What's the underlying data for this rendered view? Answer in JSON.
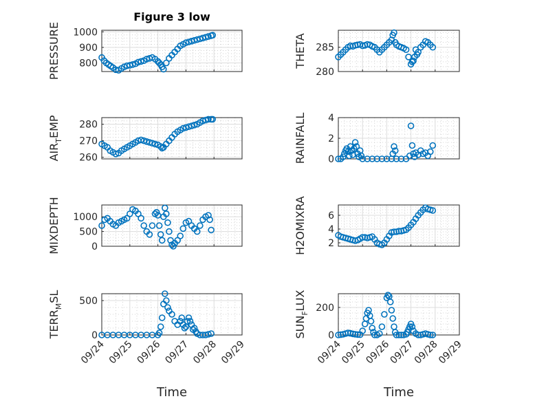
{
  "figure": {
    "title": "Figure 3 low",
    "xlabel": "Time",
    "marker_color": "#0072BD",
    "grid": "on, major and minor"
  },
  "chart_data": [
    {
      "type": "scatter",
      "title": "Figure 3 low",
      "ylabel_parts": [
        "PRESSURE"
      ],
      "xlabel": "",
      "xlim": [
        "09/24",
        "09/29"
      ],
      "xticks": [
        "09/24",
        "09/25",
        "09/26",
        "09/27",
        "09/28",
        "09/29"
      ],
      "x_tick_labels_shown": false,
      "ylim": [
        745,
        1010
      ],
      "yticks": [
        800,
        900,
        1000
      ],
      "ytick_labels": [
        "800",
        "900",
        "1000"
      ],
      "series": [
        {
          "x_days": [
            0,
            0.08,
            0.16,
            0.24,
            0.32,
            0.4,
            0.5,
            0.6,
            0.7,
            0.8,
            0.9,
            1.0,
            1.1,
            1.2,
            1.3,
            1.4,
            1.5,
            1.6,
            1.7,
            1.8,
            1.9,
            2.0,
            2.05,
            2.1,
            2.15,
            2.2,
            2.3,
            2.4,
            2.5,
            2.6,
            2.7,
            2.8,
            2.9,
            3.0,
            3.1,
            3.2,
            3.3,
            3.4,
            3.5,
            3.6,
            3.7,
            3.8,
            3.9,
            3.95
          ],
          "y": [
            835,
            815,
            800,
            790,
            780,
            770,
            757,
            753,
            765,
            775,
            782,
            785,
            790,
            795,
            805,
            810,
            815,
            825,
            830,
            835,
            825,
            810,
            800,
            790,
            775,
            760,
            800,
            830,
            850,
            870,
            890,
            910,
            920,
            930,
            935,
            940,
            945,
            950,
            955,
            960,
            965,
            970,
            975,
            978
          ]
        }
      ]
    },
    {
      "type": "scatter",
      "ylabel_parts": [
        "THETA"
      ],
      "xlabel": "",
      "xlim": [
        "09/24",
        "09/29"
      ],
      "x_tick_labels_shown": false,
      "ylim": [
        280,
        288.5
      ],
      "yticks": [
        280,
        285
      ],
      "ytick_labels": [
        "280",
        "285"
      ],
      "series": [
        {
          "x_days": [
            0,
            0.1,
            0.2,
            0.3,
            0.4,
            0.5,
            0.6,
            0.7,
            0.8,
            0.9,
            1.0,
            1.1,
            1.2,
            1.3,
            1.4,
            1.5,
            1.6,
            1.7,
            1.8,
            1.9,
            2.0,
            2.1,
            2.2,
            2.25,
            2.3,
            2.35,
            2.4,
            2.5,
            2.6,
            2.7,
            2.8,
            2.9,
            3.0,
            3.05,
            3.1,
            3.15,
            3.2,
            3.25,
            3.3,
            3.4,
            3.5,
            3.6,
            3.7,
            3.8,
            3.9
          ],
          "y": [
            283,
            283.5,
            284,
            284.5,
            285,
            285.3,
            285.2,
            285.4,
            285.5,
            285.6,
            285.3,
            285.4,
            285.6,
            285.5,
            285.2,
            285.0,
            284.5,
            284.0,
            284.5,
            285.0,
            285.5,
            286,
            286.5,
            287.5,
            288,
            286,
            285.5,
            285.2,
            285.0,
            284.8,
            284.5,
            283.0,
            281.5,
            282,
            282.2,
            283,
            284.5,
            283.5,
            284,
            285,
            285.5,
            286.2,
            286.0,
            285.5,
            285
          ]
        }
      ]
    },
    {
      "type": "scatter",
      "ylabel_parts": [
        "AIR",
        "T",
        "EMP"
      ],
      "xlabel": "",
      "xlim": [
        "09/24",
        "09/29"
      ],
      "x_tick_labels_shown": false,
      "ylim": [
        259,
        284
      ],
      "yticks": [
        260,
        270,
        280
      ],
      "ytick_labels": [
        "260",
        "270",
        "280"
      ],
      "series": [
        {
          "x_days": [
            0,
            0.1,
            0.2,
            0.3,
            0.4,
            0.5,
            0.6,
            0.7,
            0.8,
            0.9,
            1.0,
            1.1,
            1.2,
            1.3,
            1.4,
            1.5,
            1.6,
            1.7,
            1.8,
            1.9,
            2.0,
            2.1,
            2.15,
            2.2,
            2.3,
            2.4,
            2.5,
            2.6,
            2.7,
            2.8,
            2.9,
            3.0,
            3.1,
            3.2,
            3.3,
            3.4,
            3.5,
            3.6,
            3.7,
            3.8,
            3.9,
            3.95
          ],
          "y": [
            268,
            267,
            266,
            264,
            263,
            262,
            262.5,
            264,
            265,
            266,
            267,
            268,
            269,
            270,
            270.5,
            270,
            269.5,
            269,
            268.5,
            268,
            267.5,
            266.5,
            265.5,
            266,
            268,
            270,
            272,
            274,
            275.5,
            276.5,
            277.5,
            278,
            278.5,
            279,
            279.5,
            280,
            281,
            282,
            282.5,
            283,
            283,
            283
          ]
        }
      ]
    },
    {
      "type": "scatter",
      "ylabel_parts": [
        "RAINFALL"
      ],
      "xlabel": "",
      "xlim": [
        "09/24",
        "09/29"
      ],
      "x_tick_labels_shown": false,
      "ylim": [
        0,
        4
      ],
      "yticks": [
        0,
        2,
        4
      ],
      "ytick_labels": [
        "0",
        "2",
        "4"
      ],
      "series": [
        {
          "x_days": [
            0,
            0.1,
            0.2,
            0.25,
            0.3,
            0.35,
            0.4,
            0.45,
            0.5,
            0.55,
            0.6,
            0.65,
            0.7,
            0.75,
            0.8,
            0.85,
            0.9,
            0.95,
            1.0,
            1.2,
            1.4,
            1.6,
            1.8,
            2.0,
            2.2,
            2.25,
            2.3,
            2.35,
            2.4,
            2.6,
            2.8,
            2.95,
            3.0,
            3.05,
            3.1,
            3.15,
            3.2,
            3.3,
            3.4,
            3.5,
            3.6,
            3.7,
            3.8,
            3.9
          ],
          "y": [
            0,
            0,
            0.2,
            0.5,
            0.8,
            1.0,
            0.7,
            0.3,
            1.2,
            0.8,
            0.4,
            1.0,
            1.6,
            1.2,
            0.5,
            0.2,
            0.8,
            0.3,
            0,
            0,
            0,
            0,
            0,
            0,
            0,
            0.5,
            1.2,
            0.8,
            0,
            0,
            0,
            0.3,
            3.2,
            1.3,
            0.5,
            0.2,
            0.6,
            0.4,
            0.8,
            0.5,
            0.6,
            0.3,
            0.7,
            1.3
          ]
        }
      ]
    },
    {
      "type": "scatter",
      "ylabel_parts": [
        "MIXDEPTH"
      ],
      "xlabel": "",
      "xlim": [
        "09/24",
        "09/29"
      ],
      "x_tick_labels_shown": false,
      "ylim": [
        0,
        1400
      ],
      "yticks": [
        0,
        500,
        1000
      ],
      "ytick_labels": [
        "0",
        "500",
        "1000"
      ],
      "series": [
        {
          "x_days": [
            0,
            0.1,
            0.2,
            0.3,
            0.4,
            0.5,
            0.6,
            0.7,
            0.8,
            0.9,
            1.0,
            1.1,
            1.2,
            1.3,
            1.4,
            1.5,
            1.6,
            1.7,
            1.8,
            1.9,
            1.95,
            2.0,
            2.05,
            2.1,
            2.15,
            2.2,
            2.25,
            2.3,
            2.35,
            2.4,
            2.45,
            2.5,
            2.55,
            2.6,
            2.7,
            2.8,
            2.9,
            3.0,
            3.1,
            3.2,
            3.3,
            3.4,
            3.5,
            3.6,
            3.7,
            3.8,
            3.85,
            3.9
          ],
          "y": [
            700,
            900,
            950,
            850,
            750,
            700,
            800,
            850,
            900,
            950,
            1100,
            1250,
            1200,
            1100,
            950,
            700,
            500,
            400,
            700,
            1100,
            1150,
            1050,
            700,
            400,
            200,
            1000,
            1300,
            1100,
            800,
            500,
            200,
            50,
            0,
            100,
            200,
            350,
            600,
            800,
            850,
            700,
            600,
            500,
            700,
            900,
            1000,
            1050,
            900,
            550
          ]
        }
      ]
    },
    {
      "type": "scatter",
      "ylabel_parts": [
        "H2OMIXRA"
      ],
      "xlabel": "",
      "xlim": [
        "09/24",
        "09/29"
      ],
      "x_tick_labels_shown": false,
      "ylim": [
        1.5,
        7.5
      ],
      "yticks": [
        2,
        4,
        6
      ],
      "ytick_labels": [
        "2",
        "4",
        "6"
      ],
      "series": [
        {
          "x_days": [
            0,
            0.1,
            0.2,
            0.3,
            0.4,
            0.5,
            0.6,
            0.7,
            0.8,
            0.9,
            1.0,
            1.1,
            1.2,
            1.3,
            1.4,
            1.5,
            1.6,
            1.7,
            1.8,
            1.9,
            2.0,
            2.1,
            2.2,
            2.3,
            2.4,
            2.5,
            2.6,
            2.7,
            2.8,
            2.9,
            3.0,
            3.1,
            3.2,
            3.3,
            3.4,
            3.5,
            3.6,
            3.7,
            3.8,
            3.9
          ],
          "y": [
            3.1,
            2.9,
            2.8,
            2.7,
            2.6,
            2.5,
            2.4,
            2.3,
            2.4,
            2.6,
            2.8,
            2.8,
            2.7,
            2.8,
            2.9,
            2.5,
            2.0,
            1.8,
            1.7,
            2.0,
            2.5,
            3.0,
            3.5,
            3.6,
            3.6,
            3.7,
            3.7,
            3.8,
            3.9,
            4.2,
            4.6,
            5.0,
            5.5,
            6.0,
            6.4,
            6.8,
            7.1,
            6.9,
            6.8,
            6.7
          ]
        }
      ]
    },
    {
      "type": "scatter",
      "ylabel_parts": [
        "TERR",
        "M",
        "SL"
      ],
      "xlabel": "Time",
      "xlim": [
        "09/24",
        "09/29"
      ],
      "xticks": [
        "09/24",
        "09/25",
        "09/26",
        "09/27",
        "09/28",
        "09/29"
      ],
      "x_tick_labels_shown": true,
      "ylim": [
        0,
        600
      ],
      "yticks": [
        0,
        500
      ],
      "ytick_labels": [
        "0",
        "500"
      ],
      "series": [
        {
          "x_days": [
            0,
            0.2,
            0.4,
            0.6,
            0.8,
            1.0,
            1.2,
            1.4,
            1.6,
            1.8,
            2.0,
            2.05,
            2.1,
            2.15,
            2.2,
            2.25,
            2.3,
            2.35,
            2.4,
            2.5,
            2.6,
            2.7,
            2.8,
            2.85,
            2.9,
            2.95,
            3.0,
            3.05,
            3.1,
            3.15,
            3.2,
            3.25,
            3.3,
            3.35,
            3.4,
            3.5,
            3.6,
            3.7,
            3.8,
            3.9
          ],
          "y": [
            0,
            0,
            0,
            0,
            0,
            0,
            0,
            0,
            0,
            0,
            0,
            30,
            120,
            250,
            450,
            600,
            500,
            400,
            350,
            300,
            200,
            150,
            200,
            250,
            150,
            100,
            120,
            200,
            250,
            200,
            150,
            80,
            100,
            50,
            20,
            0,
            0,
            0,
            10,
            20
          ]
        }
      ]
    },
    {
      "type": "scatter",
      "ylabel_parts": [
        "SUN",
        "F",
        "LUX"
      ],
      "xlabel": "Time",
      "xlim": [
        "09/24",
        "09/29"
      ],
      "xticks": [
        "09/24",
        "09/25",
        "09/26",
        "09/27",
        "09/28",
        "09/29"
      ],
      "x_tick_labels_shown": true,
      "ylim": [
        0,
        300
      ],
      "yticks": [
        0,
        200
      ],
      "ytick_labels": [
        "0",
        "200"
      ],
      "series": [
        {
          "x_days": [
            0,
            0.1,
            0.2,
            0.3,
            0.4,
            0.5,
            0.6,
            0.7,
            0.8,
            0.9,
            1.0,
            1.1,
            1.15,
            1.2,
            1.25,
            1.3,
            1.35,
            1.4,
            1.45,
            1.5,
            1.6,
            1.7,
            1.8,
            1.9,
            2.0,
            2.05,
            2.1,
            2.15,
            2.2,
            2.25,
            2.3,
            2.35,
            2.4,
            2.5,
            2.6,
            2.7,
            2.8,
            2.85,
            2.9,
            2.95,
            3.0,
            3.05,
            3.1,
            3.2,
            3.3,
            3.4,
            3.5,
            3.6,
            3.7,
            3.8,
            3.9
          ],
          "y": [
            0,
            2,
            5,
            10,
            15,
            12,
            8,
            5,
            3,
            2,
            30,
            80,
            120,
            160,
            180,
            140,
            100,
            50,
            20,
            0,
            0,
            10,
            60,
            150,
            270,
            290,
            280,
            240,
            180,
            120,
            60,
            20,
            0,
            0,
            0,
            0,
            5,
            20,
            40,
            60,
            80,
            60,
            30,
            10,
            0,
            0,
            5,
            10,
            5,
            0,
            0
          ]
        }
      ]
    }
  ]
}
